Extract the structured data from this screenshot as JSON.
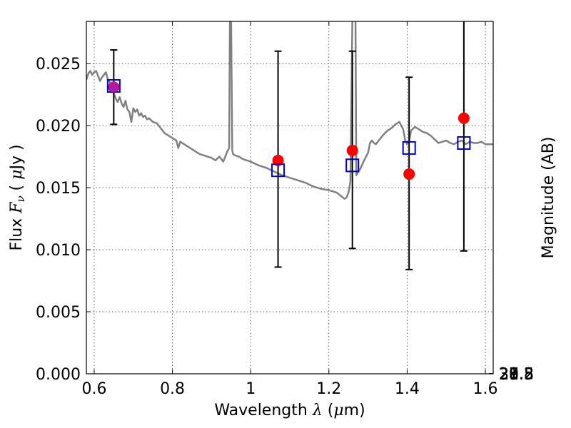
{
  "chart_data": {
    "type": "scatter",
    "xlabel_text": "Wavelength ",
    "xlabel_lambda": "λ",
    "xlabel_units_open": " (",
    "xlabel_mu": "μ",
    "xlabel_units_close": "m)",
    "ylabel_text": "Flux ",
    "ylabel_F": "F",
    "ylabel_nu": "ν",
    "ylabel_units_open": " ( ",
    "ylabel_mu": "μ",
    "ylabel_units_close": "Jy )",
    "y2label": "Magnitude (AB)",
    "xlim": [
      0.58,
      1.62
    ],
    "ylim": [
      0.0,
      0.0284
    ],
    "grid": true,
    "x_ticks": [
      0.6,
      0.8,
      1.0,
      1.2,
      1.4,
      1.6
    ],
    "x_tick_labels": [
      "0.6",
      "0.8",
      "1",
      "1.2",
      "1.4",
      "1.6"
    ],
    "y_ticks": [
      0.0,
      0.005,
      0.01,
      0.015,
      0.02,
      0.025
    ],
    "y_tick_labels": [
      "0.000",
      "0.005",
      "0.010",
      "0.015",
      "0.020",
      "0.025"
    ],
    "y2_ticks": [
      27.8,
      28.0,
      28.2,
      28.5,
      29.0,
      29.5,
      30.0,
      31.0
    ],
    "y2_tick_labels": [
      "27.8",
      "28",
      "28.2",
      "28.5",
      "29",
      "29.5",
      "30",
      "31"
    ],
    "colors": {
      "spectrum": "#808080",
      "observed": "#ff0000",
      "model": "#0000cc",
      "errorbar": "#000000",
      "overlap": "#a020c0"
    },
    "series": [
      {
        "name": "model spectrum",
        "kind": "line",
        "x": [
          0.58,
          0.585,
          0.59,
          0.595,
          0.6,
          0.605,
          0.61,
          0.615,
          0.62,
          0.625,
          0.63,
          0.635,
          0.64,
          0.645,
          0.65,
          0.655,
          0.66,
          0.665,
          0.67,
          0.675,
          0.68,
          0.685,
          0.69,
          0.695,
          0.7,
          0.705,
          0.71,
          0.715,
          0.72,
          0.725,
          0.73,
          0.735,
          0.74,
          0.75,
          0.76,
          0.77,
          0.78,
          0.79,
          0.8,
          0.81,
          0.815,
          0.82,
          0.83,
          0.84,
          0.85,
          0.86,
          0.87,
          0.88,
          0.89,
          0.9,
          0.91,
          0.92,
          0.93,
          0.94,
          0.945,
          0.947,
          0.95,
          0.953,
          0.955,
          0.96,
          0.97,
          0.98,
          0.99,
          1.0,
          1.02,
          1.04,
          1.06,
          1.08,
          1.1,
          1.12,
          1.14,
          1.16,
          1.18,
          1.2,
          1.22,
          1.24,
          1.245,
          1.25,
          1.255,
          1.26,
          1.262,
          1.264,
          1.266,
          1.268,
          1.27,
          1.28,
          1.29,
          1.3,
          1.305,
          1.31,
          1.315,
          1.32,
          1.33,
          1.34,
          1.35,
          1.36,
          1.37,
          1.38,
          1.385,
          1.39,
          1.395,
          1.4,
          1.405,
          1.41,
          1.42,
          1.43,
          1.44,
          1.45,
          1.46,
          1.47,
          1.48,
          1.49,
          1.5,
          1.51,
          1.52,
          1.53,
          1.54,
          1.55,
          1.56,
          1.57,
          1.58,
          1.59,
          1.6,
          1.62
        ],
        "values": [
          0.0237,
          0.0242,
          0.0244,
          0.0241,
          0.0243,
          0.0244,
          0.024,
          0.0236,
          0.0239,
          0.0241,
          0.0243,
          0.0237,
          0.0235,
          0.0229,
          0.0226,
          0.0222,
          0.0219,
          0.0223,
          0.0218,
          0.0215,
          0.022,
          0.0213,
          0.0211,
          0.0203,
          0.0214,
          0.0211,
          0.0213,
          0.0208,
          0.021,
          0.0207,
          0.0208,
          0.0205,
          0.0206,
          0.0203,
          0.0202,
          0.0198,
          0.0194,
          0.0192,
          0.019,
          0.0188,
          0.0182,
          0.0187,
          0.0185,
          0.0183,
          0.0181,
          0.0179,
          0.0177,
          0.0176,
          0.0175,
          0.0174,
          0.0172,
          0.0175,
          0.0171,
          0.0179,
          0.0182,
          0.0285,
          0.0285,
          0.018,
          0.0177,
          0.0176,
          0.0175,
          0.0173,
          0.0172,
          0.0171,
          0.0168,
          0.0166,
          0.0163,
          0.016,
          0.0158,
          0.0156,
          0.0154,
          0.0151,
          0.0149,
          0.0148,
          0.0146,
          0.0141,
          0.0142,
          0.0146,
          0.0155,
          0.0285,
          0.0285,
          0.0285,
          0.0285,
          0.0285,
          0.016,
          0.0165,
          0.0172,
          0.0178,
          0.0186,
          0.0188,
          0.0186,
          0.0185,
          0.0189,
          0.0193,
          0.0196,
          0.0198,
          0.0201,
          0.0203,
          0.02,
          0.0197,
          0.0188,
          0.0185,
          0.0187,
          0.0196,
          0.0199,
          0.0197,
          0.0195,
          0.0194,
          0.0192,
          0.0189,
          0.0186,
          0.0187,
          0.0188,
          0.0186,
          0.0185,
          0.0187,
          0.0188,
          0.0185,
          0.0187,
          0.0186,
          0.0186,
          0.0187,
          0.0185,
          0.0185
        ]
      },
      {
        "name": "observed flux",
        "kind": "points",
        "x": [
          0.65,
          1.07,
          1.26,
          1.405,
          1.545
        ],
        "values": [
          0.0231,
          0.0172,
          0.018,
          0.0161,
          0.0206
        ],
        "yerr_low": [
          0.0201,
          0.0086,
          0.0101,
          0.0084,
          0.0099
        ],
        "yerr_high": [
          0.0261,
          0.026,
          0.026,
          0.0239,
          0.0285
        ]
      },
      {
        "name": "model photometry",
        "kind": "squares",
        "x": [
          0.65,
          1.07,
          1.26,
          1.405,
          1.545
        ],
        "values": [
          0.0232,
          0.0164,
          0.0168,
          0.0182,
          0.0186
        ]
      }
    ]
  }
}
